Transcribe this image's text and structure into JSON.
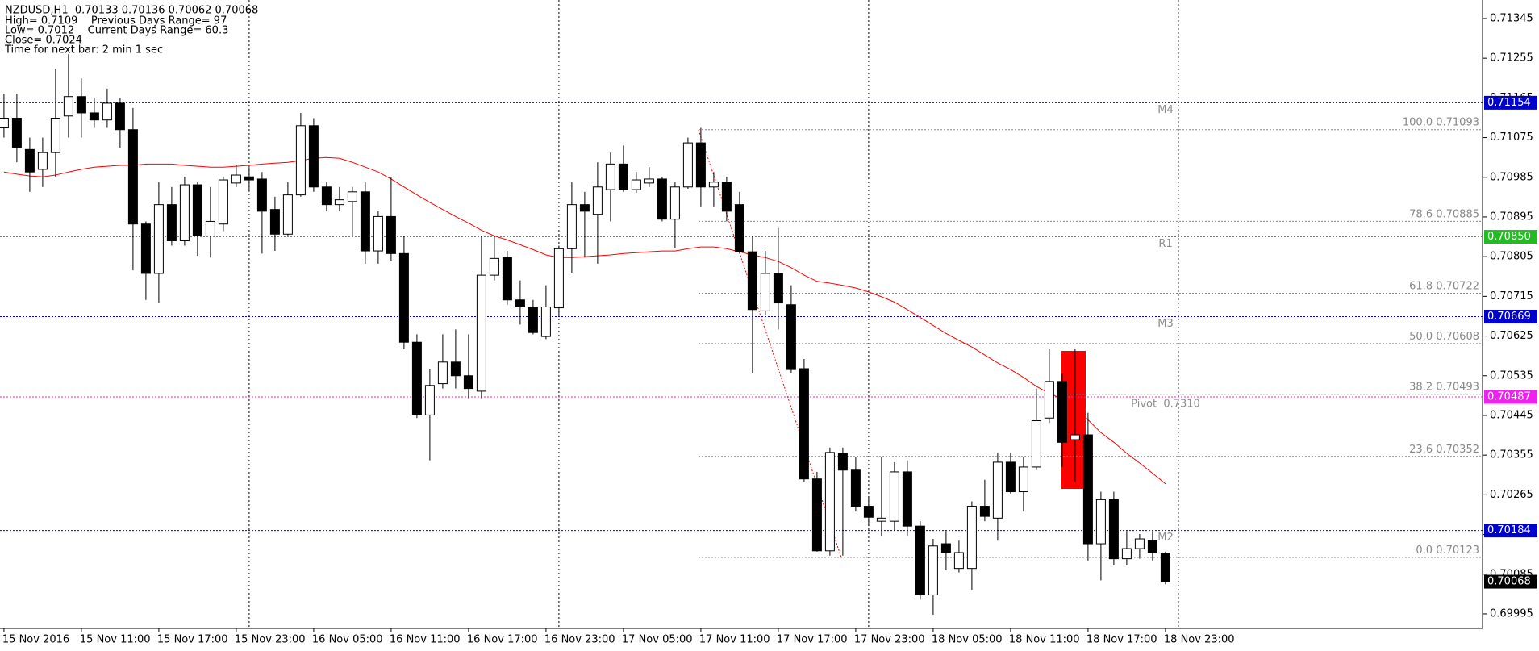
{
  "chart_data": {
    "type": "candlestick",
    "title": "NZDUSD,H1  0.70133 0.70136 0.70062 0.70068",
    "info": [
      "High= 0.7109    Previous Days Range= 97",
      "Low= 0.7012    Current Days Range= 60.3",
      "Close= 0.7024",
      "Time for next bar: 2 min 1 sec"
    ],
    "categories": [
      "15 Nov 2016",
      null,
      null,
      null,
      null,
      null,
      "15 Nov 11:00",
      null,
      null,
      null,
      null,
      null,
      "15 Nov 17:00",
      null,
      null,
      null,
      null,
      null,
      "15 Nov 23:00",
      null,
      null,
      null,
      null,
      null,
      "16 Nov 05:00",
      null,
      null,
      null,
      null,
      null,
      "16 Nov 11:00",
      null,
      null,
      null,
      null,
      null,
      "16 Nov 17:00",
      null,
      null,
      null,
      null,
      null,
      "16 Nov 23:00",
      null,
      null,
      null,
      null,
      null,
      "17 Nov 05:00",
      null,
      null,
      null,
      null,
      null,
      "17 Nov 11:00",
      null,
      null,
      null,
      null,
      null,
      "17 Nov 17:00",
      null,
      null,
      null,
      null,
      null,
      "17 Nov 23:00",
      null,
      null,
      null,
      null,
      null,
      "18 Nov 05:00",
      null,
      null,
      null,
      null,
      null,
      "18 Nov 11:00",
      null,
      null,
      null,
      null,
      null,
      "18 Nov 17:00",
      null,
      null,
      null,
      null,
      null,
      "18 Nov 23:00"
    ],
    "open": [
      0.71097,
      0.71119,
      0.71048,
      0.71003,
      0.71041,
      0.71124,
      0.71168,
      0.71131,
      0.71115,
      0.71153,
      0.71093,
      0.70879,
      0.70767,
      0.70923,
      0.70841,
      0.70968,
      0.70852,
      0.70879,
      0.70972,
      0.70986,
      0.70981,
      0.70912,
      0.70856,
      0.70945,
      0.71102,
      0.70963,
      0.70923,
      0.7093,
      0.70952,
      0.70818,
      0.70896,
      0.70812,
      0.70611,
      0.70446,
      0.70517,
      0.70566,
      0.70535,
      0.705,
      0.70763,
      0.70803,
      0.70707,
      0.70691,
      0.70624,
      0.70689,
      0.70823,
      0.70923,
      0.70901,
      0.70957,
      0.71015,
      0.70957,
      0.70972,
      0.70981,
      0.7089,
      0.70963,
      0.71063,
      0.70963,
      0.70974,
      0.70923,
      0.70816,
      0.70682,
      0.70767,
      0.70696,
      0.70551,
      0.70301,
      0.70138,
      0.70359,
      0.70321,
      0.70239,
      0.70205,
      0.70205,
      0.70317,
      0.70194,
      0.70038,
      0.70154,
      0.70098,
      0.70098,
      0.70239,
      0.70212,
      0.70339,
      0.70272,
      0.70328,
      0.70439,
      0.70522,
      0.7039,
      0.70401,
      0.70154,
      0.70254,
      0.7012,
      0.70143,
      0.70161,
      0.70133
    ],
    "high": [
      0.71175,
      0.71175,
      0.71075,
      0.71075,
      0.71231,
      0.71264,
      0.71209,
      0.71164,
      0.71186,
      0.71164,
      0.71142,
      0.70885,
      0.70974,
      0.70963,
      0.70986,
      0.70974,
      0.70963,
      0.70986,
      0.71012,
      0.71008,
      0.70997,
      0.70941,
      0.70974,
      0.71131,
      0.71119,
      0.70974,
      0.70963,
      0.70963,
      0.70974,
      0.70908,
      0.70986,
      0.70852,
      0.70629,
      0.70551,
      0.70629,
      0.7064,
      0.70629,
      0.70852,
      0.70852,
      0.70818,
      0.70751,
      0.70707,
      0.7074,
      0.7083,
      0.70974,
      0.70952,
      0.71019,
      0.71041,
      0.71057,
      0.70997,
      0.71008,
      0.70986,
      0.70974,
      0.71075,
      0.71097,
      0.70997,
      0.70986,
      0.70952,
      0.70852,
      0.70818,
      0.7087,
      0.7074,
      0.70573,
      0.70317,
      0.70372,
      0.70372,
      0.7035,
      0.70261,
      0.7035,
      0.70339,
      0.70343,
      0.70205,
      0.70165,
      0.70183,
      0.70161,
      0.7025,
      0.70299,
      0.70361,
      0.70361,
      0.7035,
      0.70506,
      0.70595,
      0.7054,
      0.70595,
      0.70451,
      0.70272,
      0.70272,
      0.70183,
      0.70176,
      0.70183,
      0.70136
    ],
    "low": [
      0.71075,
      0.71019,
      0.70952,
      0.70963,
      0.70986,
      0.71075,
      0.71075,
      0.71097,
      0.71097,
      0.71052,
      0.70774,
      0.70707,
      0.707,
      0.7083,
      0.7083,
      0.70807,
      0.70803,
      0.70863,
      0.70963,
      0.70952,
      0.70812,
      0.70818,
      0.70852,
      0.70941,
      0.70952,
      0.70908,
      0.70908,
      0.70852,
      0.70789,
      0.70789,
      0.70796,
      0.70595,
      0.70439,
      0.70343,
      0.70506,
      0.70506,
      0.70484,
      0.70484,
      0.70751,
      0.70696,
      0.70651,
      0.70629,
      0.70618,
      0.70673,
      0.70767,
      0.70803,
      0.70789,
      0.70885,
      0.70952,
      0.7095,
      0.70963,
      0.70885,
      0.70825,
      0.70959,
      0.70919,
      0.70919,
      0.70885,
      0.70812,
      0.7054,
      0.70673,
      0.7064,
      0.7054,
      0.70294,
      0.70136,
      0.70127,
      0.70127,
      0.70227,
      0.70194,
      0.70172,
      0.70183,
      0.70172,
      0.70027,
      0.69993,
      0.70094,
      0.70089,
      0.70049,
      0.70205,
      0.70161,
      0.70268,
      0.70227,
      0.70321,
      0.70428,
      0.70328,
      0.70294,
      0.70116,
      0.70071,
      0.70105,
      0.70105,
      0.7012,
      0.70116,
      0.70062
    ],
    "close": [
      0.71119,
      0.71052,
      0.70997,
      0.71041,
      0.71119,
      0.71168,
      0.71131,
      0.71115,
      0.71153,
      0.71093,
      0.70879,
      0.70767,
      0.70923,
      0.70841,
      0.70968,
      0.70852,
      0.70885,
      0.70979,
      0.7099,
      0.70979,
      0.70908,
      0.70856,
      0.70945,
      0.71102,
      0.70963,
      0.70923,
      0.70934,
      0.70952,
      0.70818,
      0.70896,
      0.70812,
      0.70611,
      0.70446,
      0.70513,
      0.70566,
      0.70535,
      0.70506,
      0.70763,
      0.70801,
      0.70707,
      0.70691,
      0.70633,
      0.70691,
      0.70823,
      0.70923,
      0.70908,
      0.70963,
      0.71015,
      0.70957,
      0.70979,
      0.70981,
      0.7089,
      0.70963,
      0.71063,
      0.70963,
      0.70974,
      0.70908,
      0.70816,
      0.70685,
      0.70767,
      0.707,
      0.70549,
      0.70301,
      0.70138,
      0.70361,
      0.70321,
      0.70239,
      0.70214,
      0.70212,
      0.70317,
      0.70194,
      0.70038,
      0.70149,
      0.70134,
      0.70134,
      0.70239,
      0.70216,
      0.70339,
      0.70272,
      0.70328,
      0.70433,
      0.70522,
      0.70384,
      0.70401,
      0.70154,
      0.70254,
      0.7012,
      0.70143,
      0.70165,
      0.70134,
      0.70068
    ],
    "up_color": "#ffffff",
    "down_color": "#000000",
    "ma": {
      "color": "#ff0000",
      "values": [
        0.70997,
        0.70992,
        0.70988,
        0.70986,
        0.7099,
        0.70997,
        0.71003,
        0.71008,
        0.7101,
        0.71012,
        0.71012,
        0.71015,
        0.71015,
        0.71015,
        0.71012,
        0.7101,
        0.71008,
        0.71008,
        0.7101,
        0.71012,
        0.71015,
        0.71017,
        0.71019,
        0.71023,
        0.71028,
        0.7103,
        0.71028,
        0.71019,
        0.71008,
        0.70997,
        0.70981,
        0.70963,
        0.70945,
        0.70928,
        0.70912,
        0.70896,
        0.70881,
        0.70865,
        0.70852,
        0.70843,
        0.70832,
        0.70821,
        0.70809,
        0.70803,
        0.70803,
        0.70805,
        0.70807,
        0.70809,
        0.70812,
        0.70814,
        0.70816,
        0.70818,
        0.70818,
        0.70823,
        0.70827,
        0.70827,
        0.70823,
        0.70816,
        0.70809,
        0.70803,
        0.70794,
        0.7078,
        0.70763,
        0.70749,
        0.70745,
        0.7074,
        0.70734,
        0.70725,
        0.70714,
        0.70702,
        0.70685,
        0.70667,
        0.70649,
        0.70631,
        0.70615,
        0.706,
        0.70582,
        0.70564,
        0.70549,
        0.70531,
        0.70511,
        0.70495,
        0.70482,
        0.70462,
        0.70435,
        0.70406,
        0.70384,
        0.70359,
        0.70337,
        0.70314,
        0.7029
      ]
    },
    "levels": [
      {
        "name": "M4",
        "value": 0.71154,
        "label": "0.71154",
        "color": "#0000cc"
      },
      {
        "name": "R1",
        "value": 0.7085,
        "label": "0.70850",
        "color": "#22bb22"
      },
      {
        "name": "M3",
        "value": 0.70669,
        "label": "0.70669",
        "color": "#0000cc"
      },
      {
        "name": "Pivot  0.7310",
        "value": 0.70487,
        "label": "0.70487",
        "color": "#ee22ee"
      },
      {
        "name": "M2",
        "value": 0.70184,
        "label": "0.70184",
        "color": "#0000cc"
      }
    ],
    "fibo": {
      "color": "#888888",
      "levels": [
        {
          "level": "100.0",
          "value": 0.71093
        },
        {
          "level": "78.6",
          "value": 0.70885
        },
        {
          "level": "61.8",
          "value": 0.70722
        },
        {
          "level": "50.0",
          "value": 0.70608
        },
        {
          "level": "38.2",
          "value": 0.70493
        },
        {
          "level": "23.6",
          "value": 0.70352
        },
        {
          "level": "0.0",
          "value": 0.70123
        }
      ]
    },
    "current_price": 0.70068,
    "ylim": [
      0.69962,
      0.71387
    ],
    "yticks": [
      0.69995,
      0.70085,
      0.70175,
      0.70265,
      0.70355,
      0.70445,
      0.70535,
      0.70625,
      0.70715,
      0.70805,
      0.70895,
      0.70985,
      0.71075,
      0.71165,
      0.71255,
      0.71345
    ],
    "grid": true
  }
}
